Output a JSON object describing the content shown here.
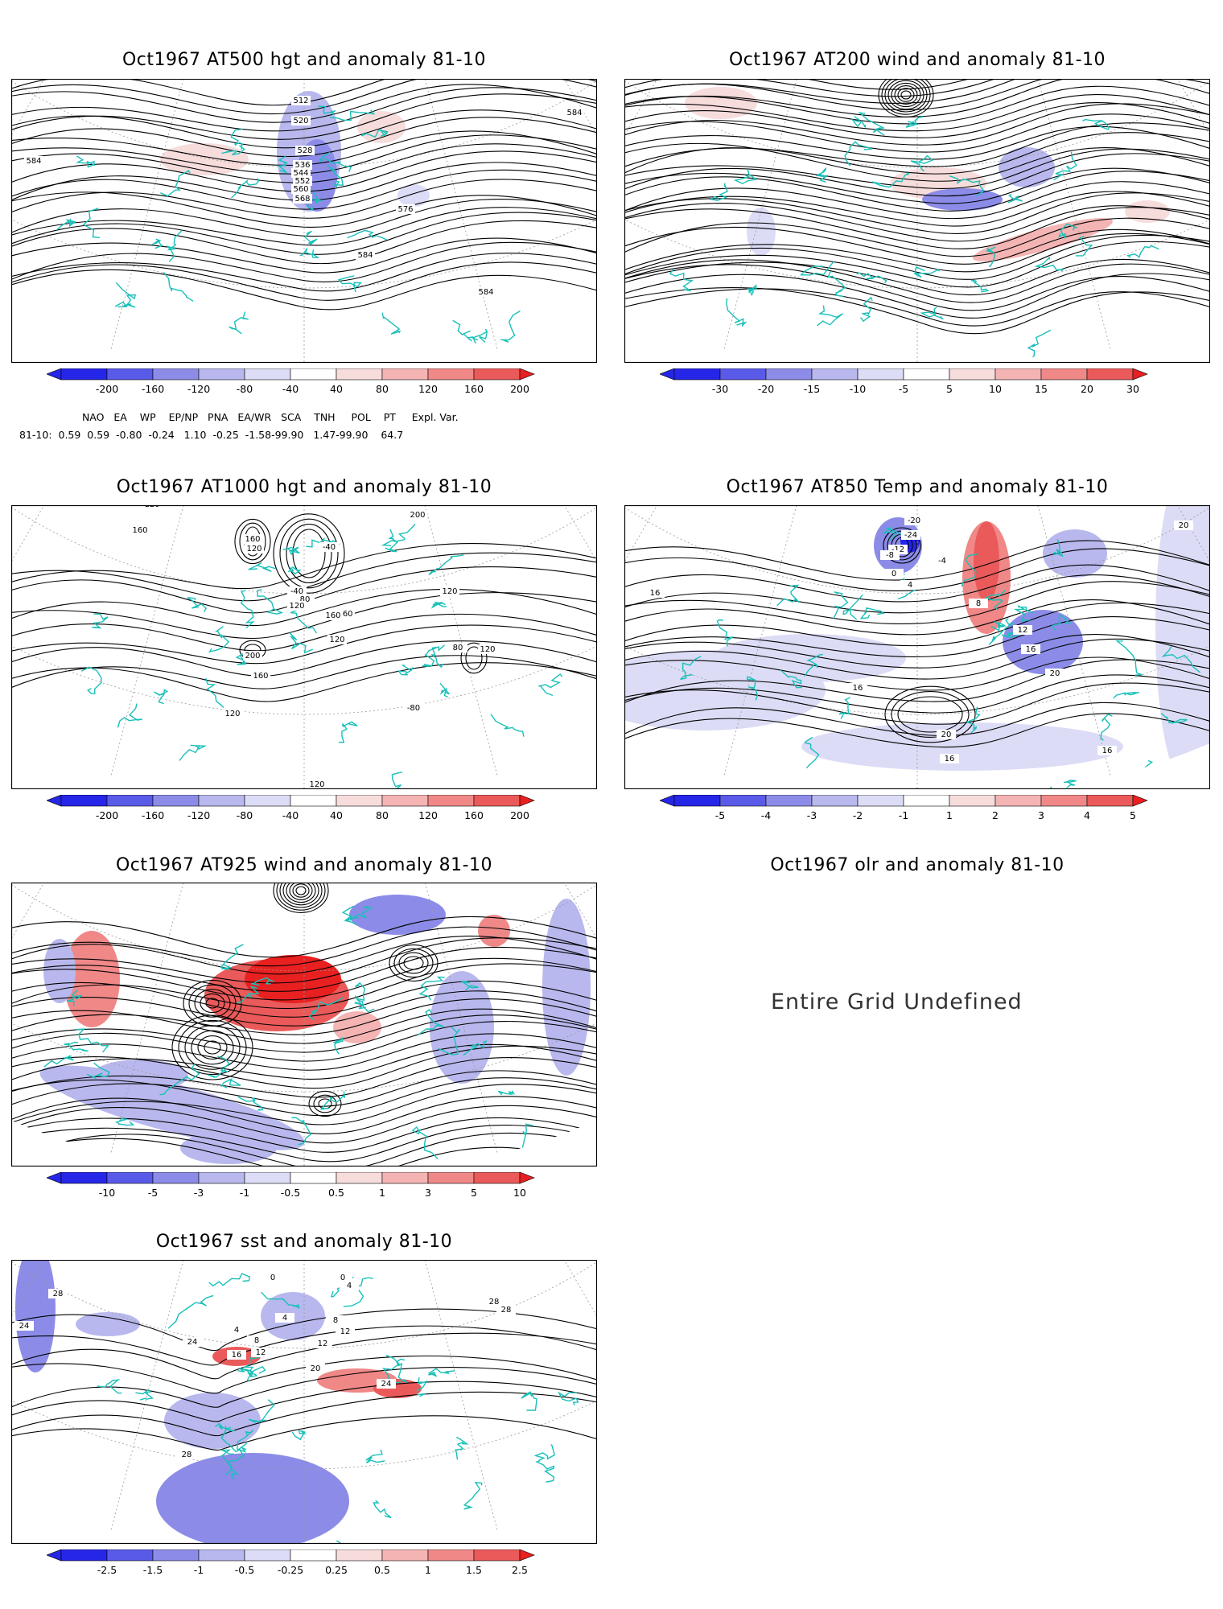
{
  "panels": [
    {
      "title": "Oct1967 AT500 hgt and anomaly 81-10",
      "colorbar": [
        "-200",
        "-160",
        "-120",
        "-80",
        "-40",
        "40",
        "80",
        "120",
        "160",
        "200"
      ],
      "labels": [
        "512",
        "520",
        "528",
        "536",
        "544",
        "552",
        "560",
        "568",
        "576",
        "584",
        "584",
        "584",
        "584"
      ]
    },
    {
      "title": "Oct1967 AT200 wind and anomaly 81-10",
      "colorbar": [
        "-30",
        "-20",
        "-15",
        "-10",
        "-5",
        "5",
        "10",
        "15",
        "20",
        "30"
      ],
      "labels": []
    },
    {
      "title": "Oct1967 AT1000 hgt and anomaly 81-10",
      "colorbar": [
        "-200",
        "-160",
        "-120",
        "-80",
        "-40",
        "40",
        "80",
        "120",
        "160",
        "200"
      ],
      "labels": [
        "120",
        "160",
        "160",
        "120",
        "-40",
        "-40",
        "80",
        "120",
        "160",
        "120",
        "200",
        "160",
        "120",
        "200",
        "160",
        "120",
        "80",
        "120",
        "-80",
        "120"
      ]
    },
    {
      "title": "Oct1967 AT850 Temp and anomaly 81-10",
      "colorbar": [
        "-5",
        "-4",
        "-3",
        "-2",
        "-1",
        "1",
        "2",
        "3",
        "4",
        "5"
      ],
      "labels": [
        "-20",
        "-24",
        "-12",
        "-8",
        "-4",
        "0",
        "4",
        "8",
        "12",
        "16",
        "16",
        "16",
        "20",
        "20",
        "20",
        "16",
        "16"
      ]
    },
    {
      "title": "Oct1967 AT925 wind and anomaly 81-10",
      "colorbar": [
        "-10",
        "-5",
        "-3",
        "-1",
        "-0.5",
        "0.5",
        "1",
        "3",
        "5",
        "10"
      ],
      "labels": []
    },
    {
      "title": "Oct1967 olr and anomaly 81-10",
      "undefined": "Entire Grid Undefined"
    },
    {
      "title": "Oct1967 sst and anomaly 81-10",
      "colorbar": [
        "-2.5",
        "-1.5",
        "-1",
        "-0.5",
        "-0.25",
        "0.25",
        "0.5",
        "1",
        "1.5",
        "2.5"
      ],
      "labels": [
        "28",
        "24",
        "0",
        "0",
        "4",
        "4",
        "4",
        "8",
        "8",
        "24",
        "16",
        "12",
        "12",
        "12",
        "20",
        "24",
        "28",
        "28",
        "28"
      ]
    }
  ],
  "indices": {
    "names": [
      "NAO",
      "EA",
      "WP",
      "EP/NP",
      "PNA",
      "EA/WR",
      "SCA",
      "TNH",
      "POL",
      "PT",
      "Expl. Var."
    ],
    "row_label": "81-10:",
    "values": [
      "0.59",
      "0.59",
      "-0.80",
      "-0.24",
      "1.10",
      "-0.25",
      "-1.58",
      "-99.90",
      "1.47",
      "-99.90",
      "64.7"
    ]
  },
  "colors": {
    "coast": "#19c0b9",
    "contour": "#000000",
    "neg": [
      "#2626e8",
      "#5a5ae8",
      "#8c8ce8",
      "#b8b8ee",
      "#dcdcf6"
    ],
    "pos": [
      "#f7dcdc",
      "#f4b4b4",
      "#f08888",
      "#ea5a5a",
      "#e82020"
    ]
  }
}
